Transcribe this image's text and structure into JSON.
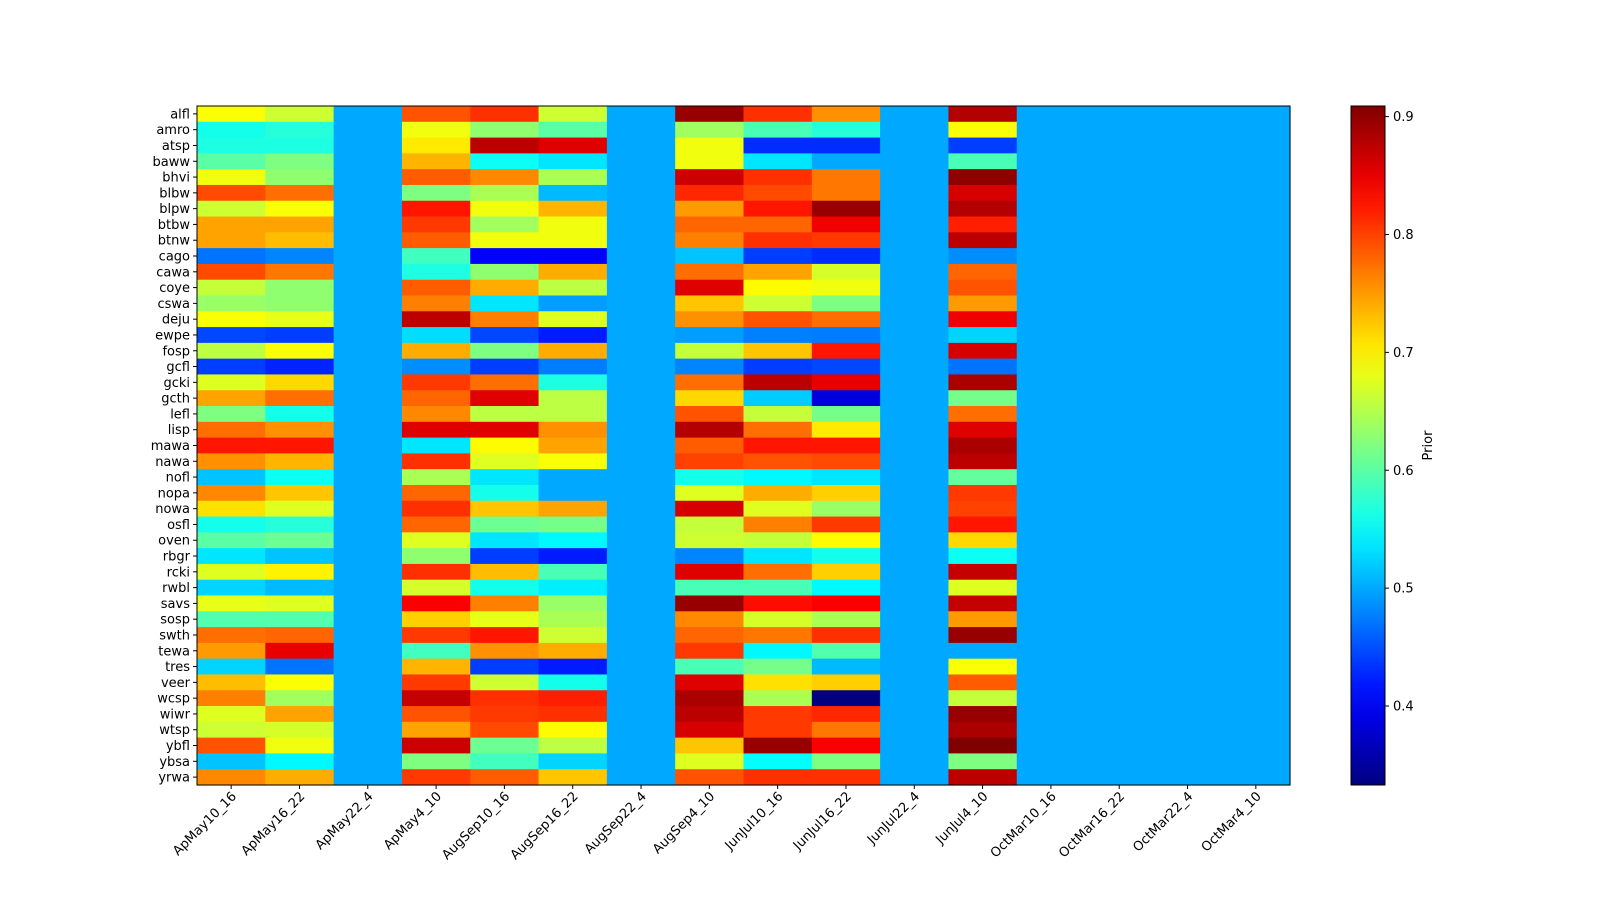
{
  "chart_data": {
    "type": "heatmap",
    "title": "",
    "xlabel": "",
    "ylabel": "",
    "colormap": "jet",
    "colorbar": {
      "label": "Prior",
      "range": [
        0.333,
        0.909
      ],
      "ticks": [
        0.4,
        0.5,
        0.6,
        0.7,
        0.8,
        0.9
      ],
      "tick_labels": [
        "0.4",
        "0.5",
        "0.6",
        "0.7",
        "0.8",
        "0.9"
      ]
    },
    "x_categories": [
      "ApMay10_16",
      "ApMay16_22",
      "ApMay22_4",
      "ApMay4_10",
      "AugSep10_16",
      "AugSep16_22",
      "AugSep22_4",
      "AugSep4_10",
      "JunJul10_16",
      "JunJul16_22",
      "JunJul22_4",
      "JunJul4_10",
      "OctMar10_16",
      "OctMar16_22",
      "OctMar22_4",
      "OctMar4_10"
    ],
    "y_categories": [
      "alfl",
      "amro",
      "atsp",
      "baww",
      "bhvi",
      "blbw",
      "blpw",
      "btbw",
      "btnw",
      "cago",
      "cawa",
      "coye",
      "cswa",
      "deju",
      "ewpe",
      "fosp",
      "gcfl",
      "gcki",
      "gcth",
      "lefl",
      "lisp",
      "mawa",
      "nawa",
      "nofl",
      "nopa",
      "nowa",
      "osfl",
      "oven",
      "rbgr",
      "rcki",
      "rwbl",
      "savs",
      "sosp",
      "swth",
      "tewa",
      "tres",
      "veer",
      "wcsp",
      "wiwr",
      "wtsp",
      "ybfl",
      "ybsa",
      "yrwa"
    ],
    "filler_value": 0.5,
    "values": [
      [
        0.69,
        0.665,
        0.5,
        0.79,
        0.81,
        0.665,
        0.5,
        0.895,
        0.81,
        0.755,
        0.5,
        0.88,
        0.5,
        0.5,
        0.5,
        0.5
      ],
      [
        0.56,
        0.57,
        0.5,
        0.685,
        0.63,
        0.6,
        0.5,
        0.64,
        0.59,
        0.57,
        0.5,
        0.69,
        0.5,
        0.5,
        0.5,
        0.5
      ],
      [
        0.565,
        0.565,
        0.5,
        0.705,
        0.875,
        0.855,
        0.5,
        0.685,
        0.43,
        0.43,
        0.5,
        0.44,
        0.5,
        0.5,
        0.5,
        0.5
      ],
      [
        0.6,
        0.62,
        0.5,
        0.735,
        0.555,
        0.535,
        0.5,
        0.685,
        0.535,
        0.5,
        0.5,
        0.59,
        0.5,
        0.5,
        0.5,
        0.5
      ],
      [
        0.685,
        0.63,
        0.5,
        0.785,
        0.76,
        0.645,
        0.5,
        0.865,
        0.81,
        0.77,
        0.5,
        0.9,
        0.5,
        0.5,
        0.5,
        0.5
      ],
      [
        0.795,
        0.775,
        0.5,
        0.62,
        0.645,
        0.51,
        0.5,
        0.815,
        0.795,
        0.77,
        0.5,
        0.86,
        0.5,
        0.5,
        0.5,
        0.5
      ],
      [
        0.665,
        0.69,
        0.5,
        0.825,
        0.685,
        0.735,
        0.5,
        0.75,
        0.825,
        0.895,
        0.5,
        0.88,
        0.5,
        0.5,
        0.5,
        0.5
      ],
      [
        0.745,
        0.745,
        0.5,
        0.805,
        0.64,
        0.685,
        0.5,
        0.78,
        0.78,
        0.845,
        0.5,
        0.82,
        0.5,
        0.5,
        0.5,
        0.5
      ],
      [
        0.745,
        0.73,
        0.5,
        0.785,
        0.685,
        0.685,
        0.5,
        0.765,
        0.81,
        0.805,
        0.5,
        0.875,
        0.5,
        0.5,
        0.5,
        0.5
      ],
      [
        0.47,
        0.48,
        0.5,
        0.585,
        0.405,
        0.405,
        0.5,
        0.515,
        0.44,
        0.43,
        0.5,
        0.485,
        0.5,
        0.5,
        0.5,
        0.5
      ],
      [
        0.795,
        0.77,
        0.5,
        0.565,
        0.63,
        0.74,
        0.5,
        0.775,
        0.745,
        0.67,
        0.5,
        0.78,
        0.5,
        0.5,
        0.5,
        0.5
      ],
      [
        0.66,
        0.63,
        0.5,
        0.785,
        0.74,
        0.655,
        0.5,
        0.855,
        0.695,
        0.685,
        0.5,
        0.79,
        0.5,
        0.5,
        0.5,
        0.5
      ],
      [
        0.635,
        0.63,
        0.5,
        0.765,
        0.535,
        0.495,
        0.5,
        0.725,
        0.665,
        0.62,
        0.5,
        0.75,
        0.5,
        0.5,
        0.5,
        0.5
      ],
      [
        0.69,
        0.68,
        0.5,
        0.875,
        0.765,
        0.675,
        0.5,
        0.755,
        0.79,
        0.775,
        0.5,
        0.845,
        0.5,
        0.5,
        0.5,
        0.5
      ],
      [
        0.445,
        0.44,
        0.5,
        0.53,
        0.445,
        0.42,
        0.5,
        0.495,
        0.477,
        0.475,
        0.5,
        0.525,
        0.5,
        0.5,
        0.5,
        0.5
      ],
      [
        0.655,
        0.69,
        0.5,
        0.74,
        0.62,
        0.74,
        0.5,
        0.66,
        0.725,
        0.825,
        0.5,
        0.86,
        0.5,
        0.5,
        0.5,
        0.5
      ],
      [
        0.44,
        0.425,
        0.5,
        0.485,
        0.44,
        0.475,
        0.5,
        0.48,
        0.44,
        0.445,
        0.5,
        0.47,
        0.5,
        0.5,
        0.5,
        0.5
      ],
      [
        0.675,
        0.715,
        0.5,
        0.805,
        0.775,
        0.565,
        0.5,
        0.775,
        0.875,
        0.85,
        0.5,
        0.885,
        0.5,
        0.5,
        0.5,
        0.5
      ],
      [
        0.745,
        0.775,
        0.5,
        0.78,
        0.855,
        0.655,
        0.5,
        0.715,
        0.52,
        0.385,
        0.5,
        0.615,
        0.5,
        0.5,
        0.5,
        0.5
      ],
      [
        0.62,
        0.56,
        0.5,
        0.76,
        0.655,
        0.655,
        0.5,
        0.79,
        0.66,
        0.615,
        0.5,
        0.775,
        0.5,
        0.5,
        0.5,
        0.5
      ],
      [
        0.775,
        0.755,
        0.5,
        0.855,
        0.855,
        0.755,
        0.5,
        0.88,
        0.775,
        0.705,
        0.5,
        0.855,
        0.5,
        0.5,
        0.5,
        0.5
      ],
      [
        0.825,
        0.825,
        0.5,
        0.535,
        0.695,
        0.745,
        0.5,
        0.785,
        0.825,
        0.825,
        0.5,
        0.885,
        0.5,
        0.5,
        0.5,
        0.5
      ],
      [
        0.755,
        0.735,
        0.5,
        0.81,
        0.675,
        0.69,
        0.5,
        0.8,
        0.79,
        0.795,
        0.5,
        0.875,
        0.5,
        0.5,
        0.5,
        0.5
      ],
      [
        0.515,
        0.555,
        0.5,
        0.645,
        0.535,
        0.5,
        0.5,
        0.56,
        0.545,
        0.535,
        0.5,
        0.605,
        0.5,
        0.5,
        0.5,
        0.5
      ],
      [
        0.76,
        0.725,
        0.5,
        0.78,
        0.56,
        0.5,
        0.5,
        0.675,
        0.74,
        0.72,
        0.5,
        0.805,
        0.5,
        0.5,
        0.5,
        0.5
      ],
      [
        0.71,
        0.675,
        0.5,
        0.81,
        0.725,
        0.745,
        0.5,
        0.86,
        0.675,
        0.635,
        0.5,
        0.8,
        0.5,
        0.5,
        0.5,
        0.5
      ],
      [
        0.56,
        0.57,
        0.5,
        0.78,
        0.61,
        0.615,
        0.5,
        0.66,
        0.765,
        0.805,
        0.5,
        0.825,
        0.5,
        0.5,
        0.5,
        0.5
      ],
      [
        0.6,
        0.61,
        0.5,
        0.675,
        0.535,
        0.545,
        0.5,
        0.665,
        0.66,
        0.695,
        0.5,
        0.715,
        0.5,
        0.5,
        0.5,
        0.5
      ],
      [
        0.535,
        0.515,
        0.5,
        0.63,
        0.44,
        0.42,
        0.5,
        0.48,
        0.535,
        0.56,
        0.5,
        0.555,
        0.5,
        0.5,
        0.5,
        0.5
      ],
      [
        0.675,
        0.7,
        0.5,
        0.81,
        0.73,
        0.59,
        0.5,
        0.855,
        0.775,
        0.72,
        0.5,
        0.87,
        0.5,
        0.5,
        0.5,
        0.5
      ],
      [
        0.525,
        0.51,
        0.5,
        0.67,
        0.56,
        0.54,
        0.5,
        0.59,
        0.59,
        0.545,
        0.5,
        0.675,
        0.5,
        0.5,
        0.5,
        0.5
      ],
      [
        0.68,
        0.675,
        0.5,
        0.84,
        0.765,
        0.635,
        0.5,
        0.895,
        0.83,
        0.84,
        0.5,
        0.87,
        0.5,
        0.5,
        0.5,
        0.5
      ],
      [
        0.595,
        0.595,
        0.5,
        0.72,
        0.68,
        0.645,
        0.5,
        0.76,
        0.67,
        0.645,
        0.5,
        0.75,
        0.5,
        0.5,
        0.5,
        0.5
      ],
      [
        0.775,
        0.78,
        0.5,
        0.805,
        0.825,
        0.665,
        0.5,
        0.78,
        0.77,
        0.81,
        0.5,
        0.895,
        0.5,
        0.5,
        0.5,
        0.5
      ],
      [
        0.75,
        0.85,
        0.5,
        0.585,
        0.755,
        0.74,
        0.5,
        0.805,
        0.545,
        0.595,
        0.5,
        0.5,
        0.5,
        0.5,
        0.5,
        0.5
      ],
      [
        0.525,
        0.47,
        0.5,
        0.735,
        0.44,
        0.42,
        0.5,
        0.59,
        0.615,
        0.51,
        0.5,
        0.69,
        0.5,
        0.5,
        0.5,
        0.5
      ],
      [
        0.73,
        0.69,
        0.5,
        0.805,
        0.665,
        0.56,
        0.5,
        0.855,
        0.71,
        0.72,
        0.5,
        0.785,
        0.5,
        0.5,
        0.5,
        0.5
      ],
      [
        0.765,
        0.64,
        0.5,
        0.87,
        0.81,
        0.82,
        0.5,
        0.885,
        0.645,
        0.333,
        0.5,
        0.66,
        0.5,
        0.5,
        0.5,
        0.5
      ],
      [
        0.675,
        0.745,
        0.5,
        0.79,
        0.805,
        0.81,
        0.5,
        0.875,
        0.805,
        0.815,
        0.5,
        0.895,
        0.5,
        0.5,
        0.5,
        0.5
      ],
      [
        0.665,
        0.67,
        0.5,
        0.745,
        0.795,
        0.695,
        0.5,
        0.86,
        0.805,
        0.77,
        0.5,
        0.885,
        0.5,
        0.5,
        0.5,
        0.5
      ],
      [
        0.79,
        0.685,
        0.5,
        0.865,
        0.61,
        0.655,
        0.5,
        0.725,
        0.895,
        0.84,
        0.5,
        0.909,
        0.5,
        0.5,
        0.5,
        0.5
      ],
      [
        0.515,
        0.545,
        0.5,
        0.62,
        0.585,
        0.525,
        0.5,
        0.675,
        0.55,
        0.62,
        0.5,
        0.62,
        0.5,
        0.5,
        0.5,
        0.5
      ],
      [
        0.76,
        0.74,
        0.5,
        0.805,
        0.785,
        0.725,
        0.5,
        0.79,
        0.81,
        0.81,
        0.5,
        0.875,
        0.5,
        0.5,
        0.5,
        0.5
      ]
    ]
  }
}
